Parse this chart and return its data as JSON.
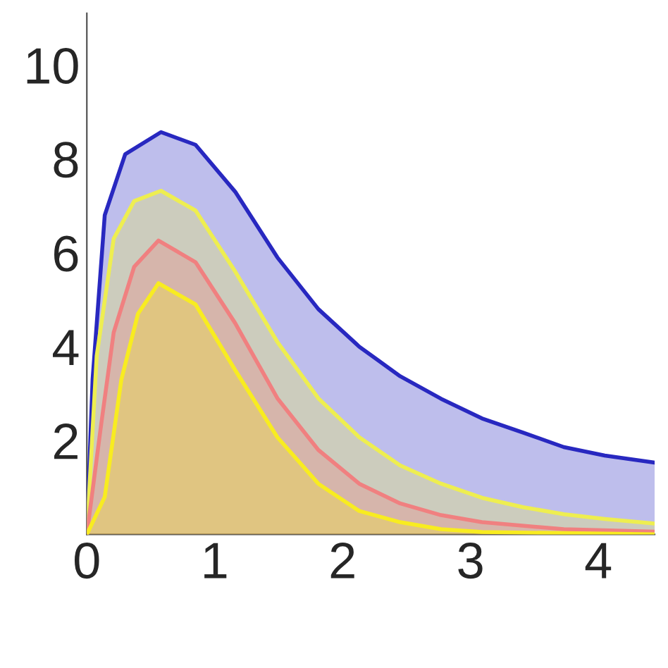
{
  "chart_data": {
    "type": "area",
    "xlim": [
      0,
      4.44
    ],
    "ylim": [
      0,
      11.1
    ],
    "xticks": [
      0,
      1,
      2,
      3,
      4
    ],
    "yticks": [
      2,
      4,
      6,
      8,
      10
    ],
    "grid": false,
    "legend": false,
    "series": [
      {
        "color": "#2828c0",
        "x": [
          0,
          0.045,
          0.14,
          0.3,
          0.58,
          0.85,
          1.16,
          1.49,
          1.81,
          2.13,
          2.45,
          2.77,
          3.09,
          3.41,
          3.73,
          4.05,
          4.44
        ],
        "values": [
          0,
          3.3,
          6.8,
          8.1,
          8.57,
          8.3,
          7.3,
          5.9,
          4.8,
          4.0,
          3.37,
          2.89,
          2.47,
          2.17,
          1.86,
          1.68,
          1.53
        ]
      },
      {
        "color": "#eeee50",
        "x": [
          0,
          0.077,
          0.21,
          0.37,
          0.58,
          0.85,
          1.16,
          1.49,
          1.81,
          2.13,
          2.45,
          2.77,
          3.09,
          3.41,
          3.73,
          4.05,
          4.44
        ],
        "values": [
          0,
          3.8,
          6.3,
          7.1,
          7.32,
          6.9,
          5.6,
          4.1,
          2.9,
          2.07,
          1.47,
          1.08,
          0.78,
          0.58,
          0.43,
          0.33,
          0.23
        ]
      },
      {
        "color": "#f08080",
        "x": [
          0,
          0.11,
          0.21,
          0.37,
          0.56,
          0.85,
          1.16,
          1.49,
          1.81,
          2.13,
          2.45,
          2.77,
          3.09,
          3.73,
          4.44
        ],
        "values": [
          0,
          2.3,
          4.3,
          5.7,
          6.26,
          5.8,
          4.5,
          2.9,
          1.8,
          1.08,
          0.66,
          0.41,
          0.26,
          0.11,
          0.06
        ]
      },
      {
        "color": "#f8ec20",
        "x": [
          0,
          0.14,
          0.27,
          0.4,
          0.56,
          0.85,
          1.16,
          1.49,
          1.81,
          2.13,
          2.45,
          2.77,
          3.09,
          4.44
        ],
        "values": [
          0,
          0.8,
          3.3,
          4.7,
          5.35,
          4.9,
          3.5,
          2.07,
          1.08,
          0.5,
          0.26,
          0.11,
          0.05,
          0.0
        ]
      }
    ]
  }
}
